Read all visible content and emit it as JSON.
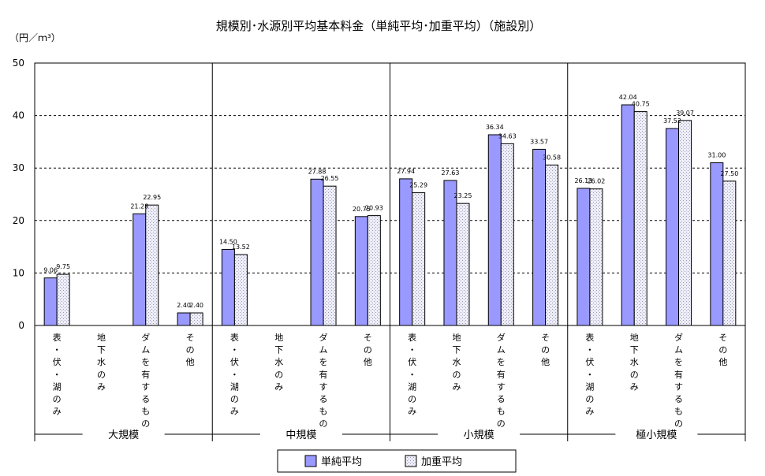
{
  "chart_data": {
    "type": "bar",
    "title": "規模別･水源別平均基本料金（単純平均･加重平均）（施設別）",
    "unit_label": "（円／ｍ³）",
    "ylim": [
      0,
      50
    ],
    "yticks": [
      "0",
      "10",
      "20",
      "30",
      "40",
      "50"
    ],
    "grid": "horizontal dashed",
    "groups": [
      "大規模",
      "中規模",
      "小規模",
      "極小規模"
    ],
    "subcategories": [
      [
        "表",
        "・",
        "伏",
        "・",
        "湖",
        "の",
        "み"
      ],
      [
        "地",
        "下",
        "水",
        "の",
        "み"
      ],
      [
        "ダ",
        "ム",
        "を",
        "有",
        "す",
        "る",
        "も",
        "の"
      ],
      [
        "そ",
        "の",
        "他"
      ]
    ],
    "series": [
      {
        "name": "単純平均",
        "color": "#9999ff",
        "values": [
          [
            9.06,
            null,
            21.28,
            2.4
          ],
          [
            14.5,
            null,
            27.88,
            20.75
          ],
          [
            27.94,
            27.63,
            36.34,
            33.57
          ],
          [
            26.13,
            42.04,
            37.52,
            31.0
          ]
        ],
        "labels": [
          [
            "9.06",
            "",
            "21.28",
            "2.40"
          ],
          [
            "14.50",
            "",
            "27.88",
            "20.75"
          ],
          [
            "27.94",
            "27.63",
            "36.34",
            "33.57"
          ],
          [
            "26.13",
            "42.04",
            "37.52",
            "31.00"
          ]
        ]
      },
      {
        "name": "加重平均",
        "color": "#e4e4f2",
        "values": [
          [
            9.75,
            null,
            22.95,
            2.4
          ],
          [
            13.52,
            null,
            26.55,
            20.93
          ],
          [
            25.29,
            23.25,
            34.63,
            30.58
          ],
          [
            26.02,
            40.75,
            39.07,
            27.5
          ]
        ],
        "labels": [
          [
            "9.75",
            "",
            "22.95",
            "2.40"
          ],
          [
            "13.52",
            "",
            "26.55",
            "20.93"
          ],
          [
            "25.29",
            "23.25",
            "34.63",
            "30.58"
          ],
          [
            "26.02",
            "40.75",
            "39.07",
            "27.50"
          ]
        ]
      }
    ],
    "legend_position": "bottom"
  }
}
